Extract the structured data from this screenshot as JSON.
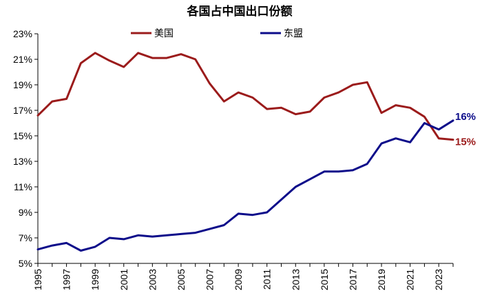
{
  "chart_data": {
    "type": "line",
    "title": "各国占中国出口份额",
    "x": [
      1995,
      1996,
      1997,
      1998,
      1999,
      2000,
      2001,
      2002,
      2003,
      2004,
      2005,
      2006,
      2007,
      2008,
      2009,
      2010,
      2011,
      2012,
      2013,
      2014,
      2015,
      2016,
      2017,
      2018,
      2019,
      2020,
      2021,
      2022,
      2023,
      2024
    ],
    "x_tick_labels": [
      "1995",
      "1997",
      "1999",
      "2001",
      "2003",
      "2005",
      "2007",
      "2009",
      "2011",
      "2013",
      "2015",
      "2017",
      "2019",
      "2021",
      "2023"
    ],
    "y_tick_labels": [
      "5%",
      "7%",
      "9%",
      "11%",
      "13%",
      "15%",
      "17%",
      "19%",
      "21%",
      "23%"
    ],
    "ylim": [
      5,
      23
    ],
    "xlim": [
      1995,
      2024
    ],
    "series": [
      {
        "name": "美国",
        "color": "#9b1b1b",
        "values": [
          16.6,
          17.7,
          17.9,
          20.7,
          21.5,
          20.9,
          20.4,
          21.5,
          21.1,
          21.1,
          21.4,
          21.0,
          19.1,
          17.7,
          18.4,
          18.0,
          17.1,
          17.2,
          16.7,
          16.9,
          18.0,
          18.4,
          19.0,
          19.2,
          16.8,
          17.4,
          17.2,
          16.5,
          14.8,
          14.7
        ],
        "end_label": "15%"
      },
      {
        "name": "东盟",
        "color": "#0c0c8a",
        "values": [
          6.1,
          6.4,
          6.6,
          6.0,
          6.3,
          7.0,
          6.9,
          7.2,
          7.1,
          7.2,
          7.3,
          7.4,
          7.7,
          8.0,
          8.9,
          8.8,
          9.0,
          10.0,
          11.0,
          11.6,
          12.2,
          12.2,
          12.3,
          12.8,
          14.4,
          14.8,
          14.5,
          16.0,
          15.5,
          16.2
        ],
        "end_label": "16%"
      }
    ],
    "grid": false,
    "legend_position": "top"
  }
}
